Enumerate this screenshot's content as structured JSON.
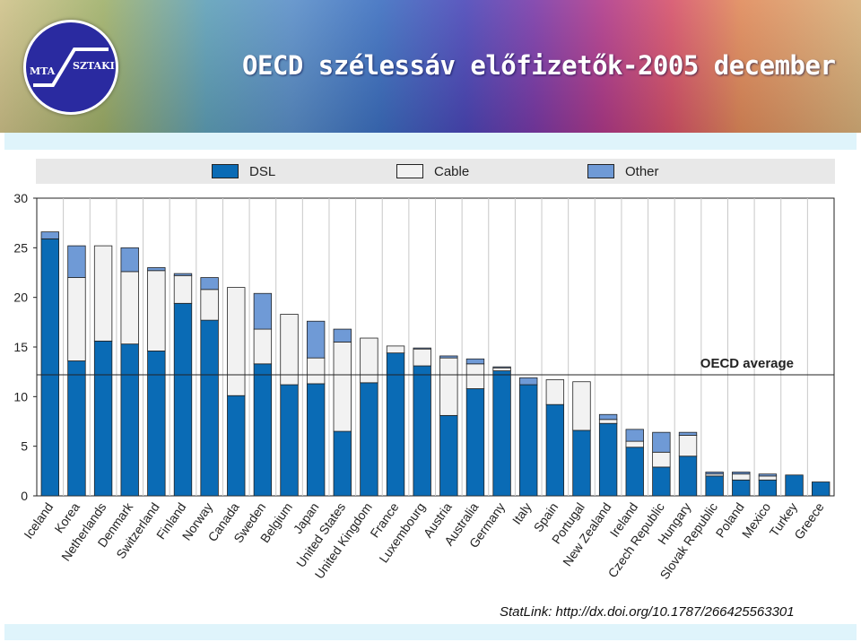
{
  "header": {
    "title": "OECD szélessáv előfizetők-2005 december",
    "logo_left": "MTA",
    "logo_right": "SZTAKI"
  },
  "footer": {
    "statlink": "StatLink:  http://dx.doi.org/10.1787/266425563301"
  },
  "colors": {
    "dsl": "#0a6bb5",
    "cable": "#e8e8e8",
    "other": "#6f9ad6"
  },
  "chart_data": {
    "type": "bar",
    "stacked": true,
    "categories": [
      "Iceland",
      "Korea",
      "Netherlands",
      "Denmark",
      "Switzerland",
      "Finland",
      "Norway",
      "Canada",
      "Sweden",
      "Belgium",
      "Japan",
      "United States",
      "United Kingdom",
      "France",
      "Luxembourg",
      "Austria",
      "Australia",
      "Germany",
      "Italy",
      "Spain",
      "Portugal",
      "New Zealand",
      "Ireland",
      "Czech Republic",
      "Hungary",
      "Slovak Republic",
      "Poland",
      "Mexico",
      "Turkey",
      "Greece"
    ],
    "series": [
      {
        "name": "DSL",
        "values": [
          25.9,
          13.6,
          15.6,
          15.3,
          14.6,
          19.4,
          17.7,
          10.1,
          13.3,
          11.2,
          11.3,
          6.5,
          11.4,
          14.4,
          13.1,
          8.1,
          10.8,
          12.6,
          11.2,
          9.2,
          6.6,
          7.3,
          4.9,
          2.9,
          4.0,
          2.0,
          1.6,
          1.6,
          2.1,
          1.4
        ]
      },
      {
        "name": "Cable",
        "values": [
          0,
          8.4,
          9.6,
          7.3,
          8.1,
          2.8,
          3.1,
          10.9,
          3.5,
          7.1,
          2.6,
          9.0,
          4.5,
          0.7,
          1.7,
          5.8,
          2.5,
          0.3,
          0,
          2.5,
          4.9,
          0.4,
          0.6,
          1.5,
          2.1,
          0.2,
          0.6,
          0.4,
          0,
          0
        ]
      },
      {
        "name": "Other",
        "values": [
          0.7,
          3.2,
          0,
          2.4,
          0.3,
          0.2,
          1.2,
          0,
          3.6,
          0,
          3.7,
          1.3,
          0,
          0,
          0.1,
          0.2,
          0.5,
          0.1,
          0.7,
          0,
          0,
          0.5,
          1.2,
          2.0,
          0.3,
          0.2,
          0.2,
          0.2,
          0,
          0
        ]
      }
    ],
    "ylim": [
      0,
      30
    ],
    "yticks": [
      0,
      5,
      10,
      15,
      20,
      25,
      30
    ],
    "reference_line": {
      "label": "OECD average",
      "value": 12.2
    },
    "legend_position": "top",
    "grid": "vertical"
  }
}
